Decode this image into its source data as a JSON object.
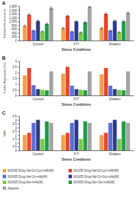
{
  "chart_data": [
    {
      "type": "bar",
      "title": "A",
      "y_label": "Relative Fluorescence",
      "x_label": "Stress Conditions",
      "categories": [
        "Control",
        "F/T",
        "Shaken"
      ],
      "ylim": [
        0,
        1800
      ],
      "yticks": [
        0,
        200,
        400,
        600,
        800,
        {
          "value": 1000,
          "label": "1,000"
        },
        {
          "value": 1200,
          "label": "1,200"
        },
        {
          "value": 1400,
          "label": "1,400"
        },
        {
          "value": 1600,
          "label": "1,600"
        },
        {
          "value": 1800,
          "label": "1,800"
        }
      ],
      "series": [
        {
          "color": "#f2a04e",
          "values": [
            760,
            650,
            650
          ],
          "errors": [
            40,
            40,
            40
          ]
        },
        {
          "color": "#e8452c",
          "values": [
            1350,
            1290,
            1400
          ],
          "errors": [
            50,
            40,
            50
          ]
        },
        {
          "color": "#5b6fd6",
          "values": [
            520,
            470,
            520
          ],
          "errors": [
            30,
            30,
            30
          ]
        },
        {
          "color": "#2d3a8c",
          "values": [
            1020,
            1000,
            1030
          ],
          "errors": [
            40,
            40,
            40
          ]
        },
        {
          "color": "#7ac943",
          "values": [
            480,
            420,
            430
          ],
          "errors": [
            30,
            30,
            30
          ]
        },
        {
          "color": "#1e9e4a",
          "values": [
            870,
            960,
            1000
          ],
          "errors": [
            40,
            40,
            50
          ]
        },
        {
          "color": "#a3a3a3",
          "values": [
            1700,
            1770,
            1450
          ],
          "errors": [
            60,
            25,
            40
          ]
        }
      ]
    },
    {
      "type": "bar",
      "title": "B",
      "y_label": "Soluble Aggregates (%)",
      "x_label": "Stress Conditions",
      "categories": [
        "Control",
        "F/T",
        "Shaken"
      ],
      "ylim": [
        0,
        3
      ],
      "yticks": [
        0,
        0.5,
        1,
        1.5,
        2,
        2.5,
        3
      ],
      "series": [
        {
          "color": "#f2a04e",
          "values": [
            1.75,
            1.9,
            1.85
          ]
        },
        {
          "color": "#e8452c",
          "values": [
            2.4,
            2.5,
            2.4
          ]
        },
        {
          "color": "#5b6fd6",
          "values": [
            0.9,
            0.85,
            0.85
          ]
        },
        {
          "color": "#2d3a8c",
          "values": [
            0.55,
            0.55,
            0.55
          ]
        },
        {
          "color": "#7ac943",
          "values": [
            0.5,
            0.5,
            0.5
          ]
        },
        {
          "color": "#1e9e4a",
          "values": [
            0.45,
            0.45,
            0.45
          ]
        },
        {
          "color": "#a3a3a3",
          "values": [
            2.1,
            2.1,
            2.1
          ]
        }
      ]
    },
    {
      "type": "bar",
      "title": "C",
      "y_label": "DAR",
      "x_label": "Stress Conditions",
      "categories": [
        "Control",
        "F/T",
        "Shaken"
      ],
      "ylim": [
        0,
        4.5
      ],
      "yticks": [
        0,
        0.5,
        1,
        1.5,
        2,
        2.5,
        3,
        3.5,
        4,
        4.5
      ],
      "legend": "bottom",
      "series": [
        {
          "name": "SGN35 Drug-Val-Cit-Cys-mAb(M)",
          "color": "#f2a04e",
          "values": [
            2.0,
            2.0,
            2.0
          ]
        },
        {
          "name": "SGN35 Drug-Val-Cit-Lys-mAb(M)",
          "color": "#e8452c",
          "values": [
            2.3,
            2.3,
            2.3
          ]
        },
        {
          "name": "SGN35 Drug-Val-Cit-mAb(M)",
          "color": "#5b6fd6",
          "values": [
            3.6,
            3.6,
            3.6
          ]
        },
        {
          "name": "SGN35 Drug-Val-Cit-Glu-mAb(M)",
          "color": "#2d3a8c",
          "values": [
            4.0,
            4.0,
            4.0
          ]
        },
        {
          "name": "SGN35 Drug-Ser-mAb(M)",
          "color": "#7ac943",
          "values": [
            1.5,
            1.5,
            1.5
          ]
        },
        {
          "name": "SGN35 Drug-Ser-Glu-mAb(M)",
          "color": "#1e9e4a",
          "values": [
            3.8,
            3.8,
            3.8
          ]
        },
        {
          "name": "Adcetris",
          "color": "#a3a3a3",
          "values": [
            3.6,
            3.6,
            3.6
          ]
        }
      ]
    }
  ]
}
